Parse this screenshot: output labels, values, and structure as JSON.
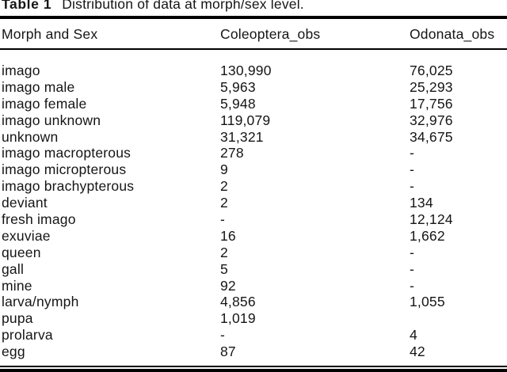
{
  "title": {
    "label": "Table 1",
    "caption": "Distribution of data at morph/sex level."
  },
  "table": {
    "columns": [
      "Morph and Sex",
      "Coleoptera_obs",
      "Odonata_obs"
    ],
    "rows": [
      {
        "morph": "imago",
        "coleoptera": "130,990",
        "odonata": "76,025"
      },
      {
        "morph": "imago male",
        "coleoptera": "5,963",
        "odonata": "25,293"
      },
      {
        "morph": "imago female",
        "coleoptera": "5,948",
        "odonata": "17,756"
      },
      {
        "morph": "imago unknown",
        "coleoptera": "119,079",
        "odonata": "32,976"
      },
      {
        "morph": "unknown",
        "coleoptera": "31,321",
        "odonata": "34,675"
      },
      {
        "morph": "imago macropterous",
        "coleoptera": "278",
        "odonata": "-"
      },
      {
        "morph": "imago micropterous",
        "coleoptera": "9",
        "odonata": "-"
      },
      {
        "morph": "imago brachypterous",
        "coleoptera": "2",
        "odonata": "-"
      },
      {
        "morph": "deviant",
        "coleoptera": "2",
        "odonata": "134"
      },
      {
        "morph": "fresh imago",
        "coleoptera": "-",
        "odonata": "12,124"
      },
      {
        "morph": "exuviae",
        "coleoptera": "16",
        "odonata": "1,662"
      },
      {
        "morph": "queen",
        "coleoptera": "2",
        "odonata": "-"
      },
      {
        "morph": "gall",
        "coleoptera": "5",
        "odonata": "-"
      },
      {
        "morph": "mine",
        "coleoptera": "92",
        "odonata": "-"
      },
      {
        "morph": "larva/nymph",
        "coleoptera": "4,856",
        "odonata": "1,055"
      },
      {
        "morph": "pupa",
        "coleoptera": "1,019",
        "odonata": ""
      },
      {
        "morph": "prolarva",
        "coleoptera": "-",
        "odonata": "4"
      },
      {
        "morph": "egg",
        "coleoptera": "87",
        "odonata": "42"
      }
    ]
  },
  "colors": {
    "background": "#ffffff",
    "text": "#151515",
    "rule": "#000000"
  }
}
